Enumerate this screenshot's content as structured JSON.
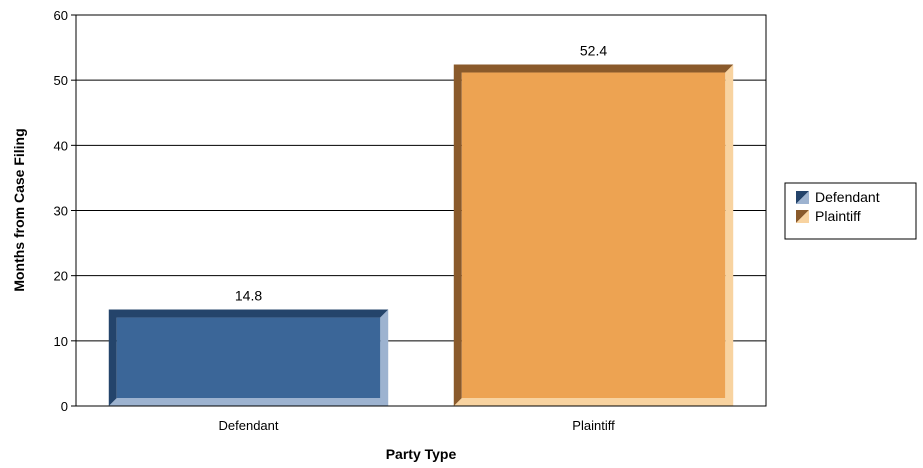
{
  "chart_data": {
    "type": "bar",
    "categories": [
      "Defendant",
      "Plaintiff"
    ],
    "values": [
      14.8,
      52.4
    ],
    "data_labels": [
      "14.8",
      "52.4"
    ],
    "xlabel": "Party Type",
    "ylabel": "Months from Case Filing",
    "ylim": [
      0,
      60
    ],
    "yticks": [
      0,
      10,
      20,
      30,
      40,
      50,
      60
    ],
    "grid": true,
    "legend": {
      "placement": "right",
      "entries": [
        "Defendant",
        "Plaintiff"
      ]
    },
    "colors": {
      "Defendant": {
        "face": "#3B6698",
        "left": "#24446B",
        "right": "#9DB3D0"
      },
      "Plaintiff": {
        "face": "#EDA352",
        "left": "#8A5A2B",
        "right": "#F8D3A0"
      }
    }
  }
}
